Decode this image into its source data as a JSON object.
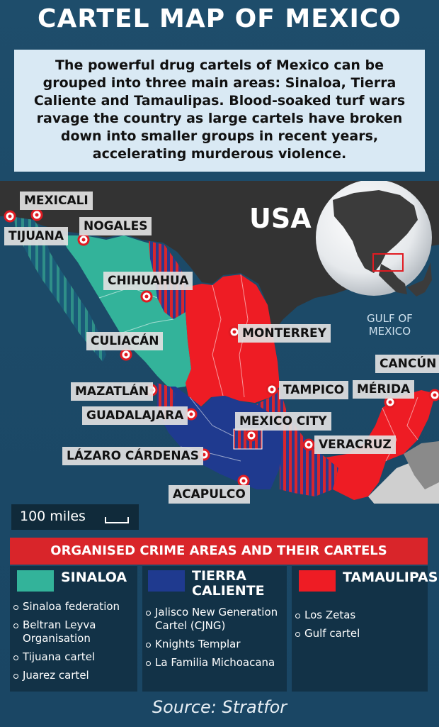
{
  "title": "CARTEL MAP OF MEXICO",
  "intro": "The powerful drug cartels of Mexico can be grouped into three main areas: Sinaloa, Tierra Caliente and Tamaulipas. Blood-soaked turf wars ravage the country as large cartels have broken down into smaller groups in recent years, accelerating murderous violence.",
  "map": {
    "country_label": "USA",
    "gulf_label_line1": "GULF OF",
    "gulf_label_line2": "MEXICO",
    "cities": [
      {
        "name": "MEXICALI"
      },
      {
        "name": "TIJUANA"
      },
      {
        "name": "NOGALES"
      },
      {
        "name": "CHIHUAHUA"
      },
      {
        "name": "CULIACÁN"
      },
      {
        "name": "MONTERREY"
      },
      {
        "name": "MAZATLÁN"
      },
      {
        "name": "TAMPICO"
      },
      {
        "name": "GUADALAJARA"
      },
      {
        "name": "MEXICO CITY"
      },
      {
        "name": "MÉRIDA"
      },
      {
        "name": "CANCÚN"
      },
      {
        "name": "VERACRUZ"
      },
      {
        "name": "LÁZARO CÁRDENAS"
      },
      {
        "name": "ACAPULCO"
      }
    ],
    "scale_label": "100 miles"
  },
  "legend": {
    "title": "ORGANISED CRIME AREAS AND THEIR CARTELS",
    "groups": [
      {
        "name": "SINALOA",
        "color": "#33b39a",
        "cartels": [
          "Sinaloa federation",
          "Beltran Leyva Organisation",
          "Tijuana cartel",
          "Juarez cartel"
        ]
      },
      {
        "name_line1": "TIERRA",
        "name_line2": "CALIENTE",
        "color": "#1f3a8f",
        "cartels": [
          "Jalisco New Generation Cartel (CJNG)",
          "Knights Templar",
          "La Familia Michoacana"
        ]
      },
      {
        "name": "TAMAULIPAS",
        "color": "#ee1c24",
        "cartels": [
          "Los Zetas",
          "Gulf cartel"
        ]
      }
    ]
  },
  "source": "Source: Stratfor",
  "colors": {
    "sinaloa": "#33b39a",
    "tierra_caliente": "#1f3a8f",
    "tamaulipas": "#ee1c24",
    "usa_land": "#333333",
    "sea": "#1e4d6b"
  }
}
